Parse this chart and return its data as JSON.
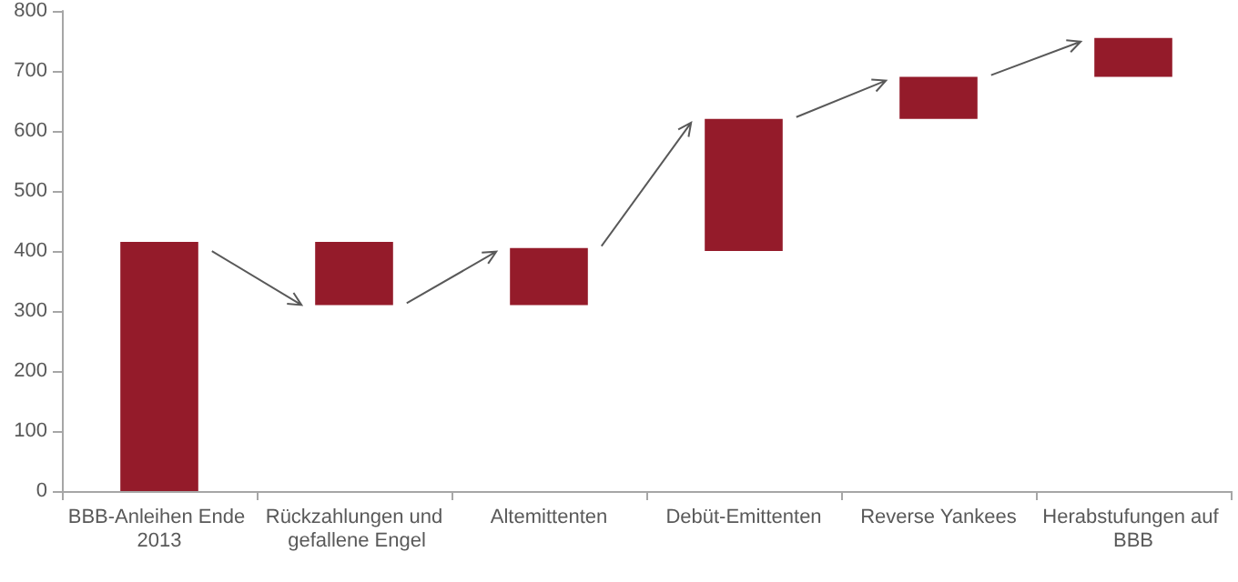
{
  "chart_data": {
    "type": "bar",
    "categories": [
      "BBB-Anleihen Ende 2013",
      "Rückzahlungen und gefallene Engel",
      "Altemittenten",
      "Debüt-Emittenten",
      "Reverse Yankees",
      "Herabstufungen auf BBB"
    ],
    "values": [
      415,
      105,
      95,
      220,
      70,
      65
    ],
    "base": [
      0,
      310,
      310,
      400,
      620,
      690
    ],
    "color": "#941b2a",
    "ylim": [
      0,
      800
    ],
    "yticks": [
      0,
      100,
      200,
      300,
      400,
      500,
      600,
      700,
      800
    ],
    "grid": false
  }
}
